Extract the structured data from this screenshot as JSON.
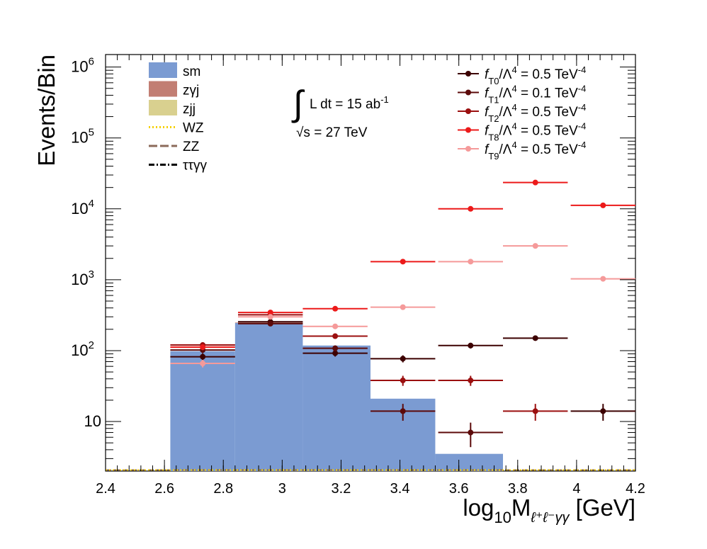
{
  "chart_data": {
    "type": "bar",
    "title": "",
    "xlabel": "log",
    "xlabel_sub": "10",
    "xlabel_m": "M",
    "xlabel_msub": "ℓ⁺ℓ⁻γγ",
    "xlabel_unit": " [GeV]",
    "ylabel": "Events/Bin",
    "xlim": [
      2.4,
      4.2
    ],
    "ylim": [
      2,
      1500000
    ],
    "yscale": "log",
    "grid": false,
    "x_ticks": [
      {
        "v": 2.4,
        "t": "2.4"
      },
      {
        "v": 2.6,
        "t": "2.6"
      },
      {
        "v": 2.8,
        "t": "2.8"
      },
      {
        "v": 3.0,
        "t": "3"
      },
      {
        "v": 3.2,
        "t": "3.2"
      },
      {
        "v": 3.4,
        "t": "3.4"
      },
      {
        "v": 3.6,
        "t": "3.6"
      },
      {
        "v": 3.8,
        "t": "3.8"
      },
      {
        "v": 4.0,
        "t": "4"
      },
      {
        "v": 4.2,
        "t": "4.2"
      }
    ],
    "y_ticks": [
      {
        "v": 10,
        "base": "10",
        "exp": ""
      },
      {
        "v": 100,
        "base": "10",
        "exp": "2"
      },
      {
        "v": 1000,
        "base": "10",
        "exp": "3"
      },
      {
        "v": 10000,
        "base": "10",
        "exp": "4"
      },
      {
        "v": 100000,
        "base": "10",
        "exp": "5"
      },
      {
        "v": 1000000,
        "base": "10",
        "exp": "6"
      }
    ],
    "bin_edges": [
      2.62,
      2.84,
      3.07,
      3.3,
      3.52,
      3.75,
      3.97,
      4.2
    ],
    "stacked_backgrounds": [
      {
        "name": "sm",
        "color": "#7b9bd2",
        "style": "fill",
        "values": [
          98,
          245,
          118,
          21,
          3.5,
          0,
          0
        ]
      },
      {
        "name": "zγj",
        "color": "#c27e73",
        "style": "fill",
        "values": [
          0,
          4,
          0,
          0,
          0,
          0,
          0
        ]
      },
      {
        "name": "zjj",
        "color": "#d9d08f",
        "style": "fill",
        "values": [
          0,
          0,
          0,
          0,
          0,
          0,
          0
        ]
      },
      {
        "name": "WZ",
        "color": "#f5d000",
        "style": "dotted",
        "values": [
          0,
          0,
          0,
          0,
          0,
          0,
          0
        ]
      },
      {
        "name": "ZZ",
        "color": "#8b6a5a",
        "style": "dashed",
        "values": [
          0,
          0,
          0,
          0,
          0,
          0,
          0
        ]
      },
      {
        "name": "ττγγ",
        "color": "#000000",
        "style": "dashdot",
        "values": [
          0,
          0,
          0,
          0,
          0,
          0,
          0
        ]
      }
    ],
    "series": [
      {
        "name_sub": "T0",
        "value_label": "0.5",
        "color": "#3c0000",
        "points": [
          {
            "x": 2.73,
            "y": 82
          },
          {
            "x": 2.96,
            "y": 255
          },
          {
            "x": 3.18,
            "y": 92
          },
          {
            "x": 3.41,
            "y": 77
          },
          {
            "x": 3.64,
            "y": 118
          },
          {
            "x": 3.86,
            "y": 150
          },
          {
            "x": 4.09,
            "y": 14
          }
        ]
      },
      {
        "name_sub": "T1",
        "value_label": "0.1",
        "color": "#5c0a0a",
        "points": [
          {
            "x": 2.73,
            "y": 102
          },
          {
            "x": 2.96,
            "y": 240
          },
          {
            "x": 3.18,
            "y": 108
          },
          {
            "x": 3.41,
            "y": 14
          },
          {
            "x": 3.64,
            "y": 7
          }
        ]
      },
      {
        "name_sub": "T2",
        "value_label": "0.5",
        "color": "#9b0f0f",
        "points": [
          {
            "x": 2.73,
            "y": 120
          },
          {
            "x": 2.96,
            "y": 320
          },
          {
            "x": 3.18,
            "y": 160
          },
          {
            "x": 3.41,
            "y": 38
          },
          {
            "x": 3.64,
            "y": 38
          },
          {
            "x": 3.86,
            "y": 14
          }
        ]
      },
      {
        "name_sub": "T8",
        "value_label": "0.5",
        "color": "#ec1a1a",
        "points": [
          {
            "x": 2.73,
            "y": 112
          },
          {
            "x": 2.96,
            "y": 345
          },
          {
            "x": 3.18,
            "y": 390
          },
          {
            "x": 3.41,
            "y": 1800
          },
          {
            "x": 3.64,
            "y": 10000
          },
          {
            "x": 3.86,
            "y": 23500
          },
          {
            "x": 4.09,
            "y": 11200
          }
        ]
      },
      {
        "name_sub": "T9",
        "value_label": "0.5",
        "color": "#f59a9a",
        "points": [
          {
            "x": 2.73,
            "y": 66
          },
          {
            "x": 2.96,
            "y": 300
          },
          {
            "x": 3.18,
            "y": 220
          },
          {
            "x": 3.41,
            "y": 410
          },
          {
            "x": 3.64,
            "y": 1800
          },
          {
            "x": 3.86,
            "y": 3000
          },
          {
            "x": 4.09,
            "y": 1030
          }
        ]
      }
    ],
    "legend_left_labels": [
      "sm",
      "zγj",
      "zjj",
      "WZ",
      "ZZ",
      "ττγγ"
    ],
    "legend_right": {
      "prefix": "f",
      "mid": "/Λ",
      "mid_exp": "4",
      "equals": " = ",
      "unit": " TeV",
      "unit_exp": "-4"
    },
    "annotation": {
      "integral": "∫",
      "lumi_text": "L dt = 15 ab",
      "lumi_exp": "-1",
      "sqrt_s_text": "√s = 27 TeV"
    }
  }
}
